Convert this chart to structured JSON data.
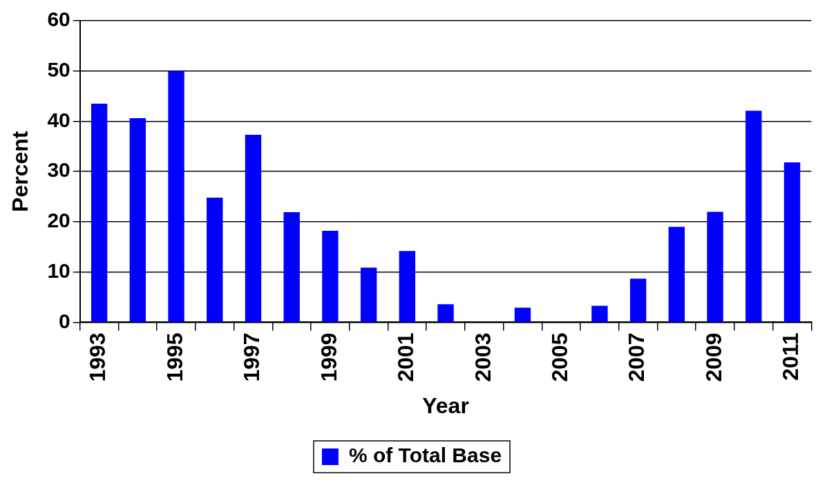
{
  "chart_data": {
    "type": "bar",
    "xlabel": "Year",
    "ylabel": "Percent",
    "categories": [
      "1993",
      null,
      "1995",
      null,
      "1997",
      null,
      "1999",
      null,
      "2001",
      null,
      "2003",
      null,
      "2005",
      null,
      "2007",
      null,
      "2009",
      null,
      "2011"
    ],
    "series": [
      {
        "name": "% of Total Base",
        "color": "#0000ff",
        "values": [
          43.5,
          40.6,
          50,
          24.8,
          37.3,
          21.9,
          18.2,
          10.9,
          14.2,
          3.6,
          0,
          2.9,
          0,
          3.3,
          8.7,
          19,
          22,
          42.1,
          31.8
        ]
      }
    ],
    "ylim": [
      0,
      60
    ],
    "yticks": [
      0,
      10,
      20,
      30,
      40,
      50,
      60
    ],
    "grid": "y",
    "legend": "bottom"
  }
}
